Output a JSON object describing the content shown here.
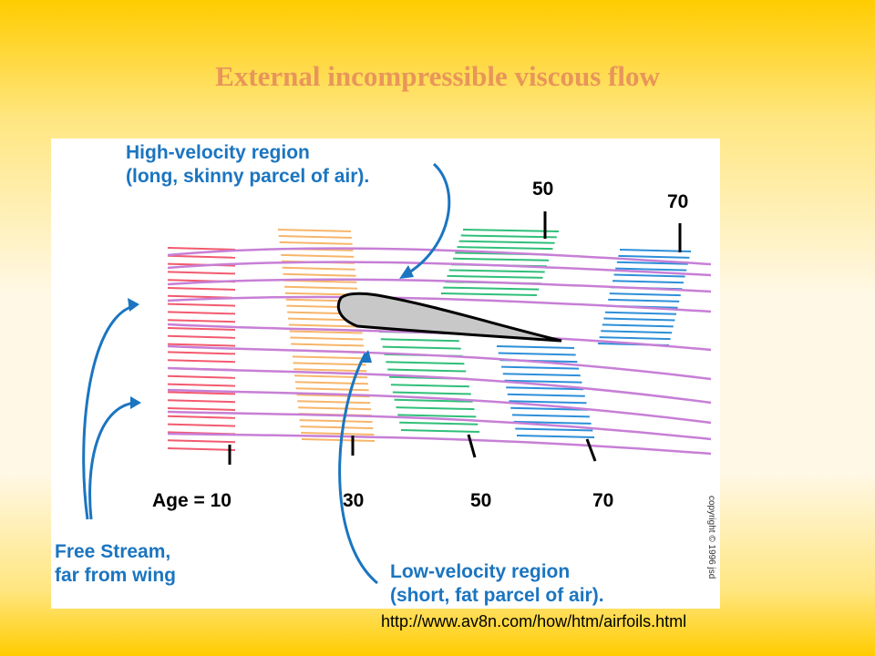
{
  "slide": {
    "title": "External incompressible viscous flow",
    "source_url": "http://www.av8n.com/how/htm/airfoils.html"
  },
  "diagram": {
    "high_velocity_label": [
      "High-velocity region",
      "(long, skinny parcel of air)."
    ],
    "low_velocity_label": [
      "Low-velocity region",
      "(short, fat parcel of air)."
    ],
    "free_stream_label": [
      "Free Stream,",
      "far from wing"
    ],
    "bottom_ages": [
      "Age = 10",
      "30",
      "50",
      "70"
    ],
    "top_ages": [
      "50",
      "70"
    ],
    "copyright": "copyright © 1996 jsd",
    "colors": {
      "streamline": "#c77fd6",
      "parcel_age_10": "#f25a6e",
      "parcel_age_30": "#f7b56a",
      "parcel_age_50": "#2fbf79",
      "parcel_age_70": "#2d8fd9",
      "airfoil_fill": "#c8c8c8",
      "label_blue": "#1b75c0"
    },
    "icons": [
      "curved-arrow-icon"
    ]
  }
}
